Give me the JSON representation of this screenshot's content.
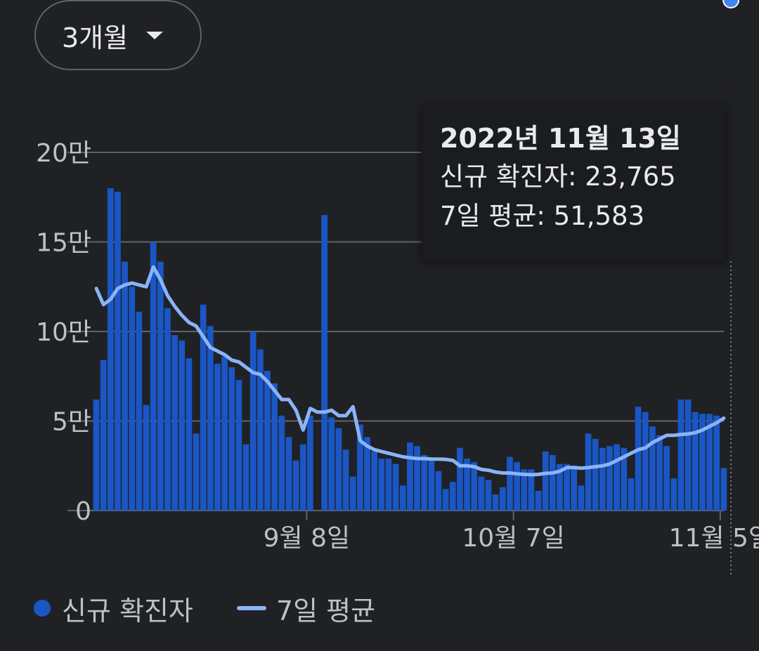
{
  "controls": {
    "range_label": "3개월",
    "range_icon": "caret-down-icon"
  },
  "tooltip": {
    "date": "2022년 11월 13일",
    "new_cases_label": "신규 확진자: 23,765",
    "avg_label": "7일 평균: 51,583"
  },
  "legend": {
    "bars_label": "신규 확진자",
    "line_label": "7일 평균"
  },
  "colors": {
    "background": "#202124",
    "bar": "#1a56c4",
    "line": "#8ab4f8",
    "marker": "#4285f4",
    "grid": "#5f6368",
    "text": "#bdc1c6"
  },
  "chart_data": {
    "type": "bar",
    "series": [
      {
        "name": "신규 확진자",
        "type": "bar",
        "values": [
          62000,
          84000,
          180000,
          178000,
          139000,
          125000,
          111000,
          59000,
          150000,
          139000,
          113000,
          98000,
          95000,
          85000,
          43000,
          115000,
          103000,
          82000,
          86000,
          80000,
          73000,
          37000,
          100000,
          90000,
          78000,
          71000,
          53000,
          41000,
          28000,
          37000,
          53000,
          0,
          165000,
          52000,
          46000,
          34000,
          19000,
          48000,
          41000,
          33000,
          29000,
          29000,
          26000,
          14000,
          38000,
          36000,
          31000,
          29000,
          22000,
          12000,
          16000,
          35000,
          29000,
          27000,
          19000,
          17000,
          9000,
          13000,
          30000,
          27000,
          23000,
          23000,
          11000,
          33000,
          31000,
          26000,
          26000,
          25000,
          14000,
          43000,
          40000,
          35000,
          36000,
          37000,
          35000,
          18000,
          58000,
          55000,
          47000,
          42000,
          36000,
          18000,
          62000,
          62000,
          55000,
          54000,
          54000,
          53000,
          23765
        ],
        "color": "#1a56c4"
      },
      {
        "name": "7일 평균",
        "type": "line",
        "values": [
          124000,
          115000,
          118000,
          124000,
          126000,
          127000,
          126000,
          125000,
          136000,
          129000,
          120000,
          114000,
          109000,
          105000,
          103000,
          97000,
          91000,
          89000,
          87000,
          84000,
          83000,
          80000,
          77000,
          76000,
          72000,
          67000,
          62000,
          62000,
          56000,
          45000,
          57000,
          55000,
          55000,
          56000,
          53000,
          53000,
          58000,
          39000,
          36000,
          34000,
          33000,
          32000,
          31000,
          30000,
          29500,
          29000,
          29000,
          28800,
          28700,
          28600,
          28000,
          25000,
          25000,
          24500,
          23000,
          22500,
          21500,
          21000,
          21000,
          20500,
          20200,
          20000,
          20200,
          20800,
          21000,
          22000,
          24000,
          24000,
          23700,
          24000,
          24500,
          25000,
          26000,
          28000,
          30000,
          32000,
          34000,
          35000,
          38000,
          40000,
          42000,
          42000,
          42500,
          42800,
          43500,
          45000,
          47000,
          49000,
          51583
        ],
        "color": "#8ab4f8"
      }
    ],
    "x_ticks": [
      "9월 8일",
      "10월 7일",
      "11월 5일"
    ],
    "x_tick_positions": [
      30,
      59,
      88
    ],
    "y_ticks": [
      0,
      50000,
      100000,
      150000,
      200000
    ],
    "y_tick_labels": [
      "0",
      "5만",
      "10만",
      "15만",
      "20만"
    ],
    "ylim": [
      0,
      200000
    ],
    "highlight_index": 89,
    "title": "",
    "xlabel": "",
    "ylabel": ""
  }
}
